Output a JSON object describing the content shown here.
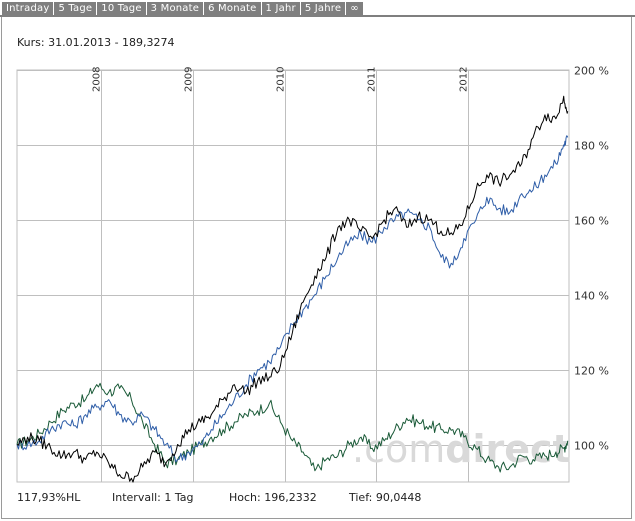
{
  "tabs": [
    {
      "label": "Intraday"
    },
    {
      "label": "5 Tage"
    },
    {
      "label": "10 Tage"
    },
    {
      "label": "3 Monate"
    },
    {
      "label": "6 Monate"
    },
    {
      "label": "1 Jahr"
    },
    {
      "label": "5 Jahre"
    },
    {
      "label": "∞"
    }
  ],
  "price_label": "Kurs: 31.01.2013 - 189,3274",
  "footer": {
    "change": "117,93%HL",
    "interval": "Intervall: 1 Tag",
    "high": "Hoch: 196,2332",
    "low": "Tief: 90,0448"
  },
  "watermark": {
    "prefix": ".com",
    "suffix": "direct",
    "color": "#d9d9d9"
  },
  "colors": {
    "series_main": "#000000",
    "series_blue": "#2f5ea8",
    "series_green": "#1a5a38",
    "grid": "#bfbfbf",
    "tab_bg": "#7f7f7f"
  },
  "chart_data": {
    "type": "line",
    "ylim": [
      90,
      200
    ],
    "yticks": [
      {
        "value": 100,
        "label": "100 %"
      },
      {
        "value": 120,
        "label": "120 %"
      },
      {
        "value": 140,
        "label": "140 %"
      },
      {
        "value": 160,
        "label": "160 %"
      },
      {
        "value": 180,
        "label": "180 %"
      },
      {
        "value": 200,
        "label": "200 %"
      }
    ],
    "xlim": [
      "2007-02-01",
      "2013-02-05"
    ],
    "xticks": [
      {
        "date": "2008-01-01",
        "label": "2008"
      },
      {
        "date": "2009-01-01",
        "label": "2009"
      },
      {
        "date": "2010-01-01",
        "label": "2010"
      },
      {
        "date": "2011-01-01",
        "label": "2011"
      },
      {
        "date": "2012-01-01",
        "label": "2012"
      }
    ],
    "grid": true,
    "series": [
      {
        "key": "main",
        "x": [
          "2007-02-01",
          "2007-03-15",
          "2007-05-01",
          "2007-06-15",
          "2007-08-01",
          "2007-09-15",
          "2007-11-01",
          "2007-12-15",
          "2008-02-01",
          "2008-03-15",
          "2008-05-01",
          "2008-06-15",
          "2008-08-01",
          "2008-09-15",
          "2008-11-01",
          "2008-12-15",
          "2009-02-01",
          "2009-03-15",
          "2009-05-01",
          "2009-06-15",
          "2009-08-01",
          "2009-09-15",
          "2009-11-01",
          "2009-12-15",
          "2010-02-01",
          "2010-03-15",
          "2010-05-01",
          "2010-06-15",
          "2010-08-01",
          "2010-09-15",
          "2010-11-01",
          "2010-12-15",
          "2011-02-01",
          "2011-03-15",
          "2011-05-01",
          "2011-06-15",
          "2011-08-01",
          "2011-09-15",
          "2011-11-01",
          "2011-12-15",
          "2012-02-01",
          "2012-03-15",
          "2012-05-01",
          "2012-06-15",
          "2012-08-01",
          "2012-09-15",
          "2012-11-01",
          "2012-12-15",
          "2013-01-15",
          "2013-01-31"
        ],
        "values": [
          100,
          102,
          101,
          99,
          97,
          98,
          96,
          98,
          95,
          92,
          91,
          94,
          98,
          95,
          100,
          104,
          106,
          108,
          112,
          116,
          114,
          117,
          118,
          121,
          130,
          138,
          145,
          150,
          158,
          160,
          157,
          155,
          160,
          163,
          158,
          161,
          160,
          157,
          156,
          160,
          168,
          172,
          170,
          172,
          175,
          182,
          188,
          187,
          193,
          189
        ]
      },
      {
        "key": "blue",
        "x": [
          "2007-02-01",
          "2007-03-15",
          "2007-05-01",
          "2007-06-15",
          "2007-08-01",
          "2007-09-15",
          "2007-11-01",
          "2007-12-15",
          "2008-02-01",
          "2008-03-15",
          "2008-05-01",
          "2008-06-15",
          "2008-08-01",
          "2008-09-15",
          "2008-11-01",
          "2008-12-15",
          "2009-02-01",
          "2009-03-15",
          "2009-05-01",
          "2009-06-15",
          "2009-08-01",
          "2009-09-15",
          "2009-11-01",
          "2009-12-15",
          "2010-02-01",
          "2010-03-15",
          "2010-05-01",
          "2010-06-15",
          "2010-08-01",
          "2010-09-15",
          "2010-11-01",
          "2010-12-15",
          "2011-02-01",
          "2011-03-15",
          "2011-05-01",
          "2011-06-15",
          "2011-08-01",
          "2011-09-15",
          "2011-11-01",
          "2011-12-15",
          "2012-02-01",
          "2012-03-15",
          "2012-05-01",
          "2012-06-15",
          "2012-08-01",
          "2012-09-15",
          "2012-11-01",
          "2012-12-15",
          "2013-01-15",
          "2013-01-31"
        ],
        "values": [
          100,
          100,
          101,
          104,
          106,
          105,
          108,
          110,
          112,
          108,
          106,
          108,
          104,
          100,
          96,
          98,
          100,
          104,
          108,
          112,
          116,
          120,
          122,
          126,
          132,
          136,
          140,
          145,
          150,
          154,
          156,
          154,
          158,
          160,
          162,
          160,
          158,
          150,
          148,
          155,
          160,
          166,
          163,
          162,
          167,
          168,
          172,
          175,
          180,
          182
        ]
      },
      {
        "key": "green",
        "x": [
          "2007-02-01",
          "2007-03-15",
          "2007-05-01",
          "2007-06-15",
          "2007-08-01",
          "2007-09-15",
          "2007-11-01",
          "2007-12-15",
          "2008-02-01",
          "2008-03-15",
          "2008-05-01",
          "2008-06-15",
          "2008-08-01",
          "2008-09-15",
          "2008-11-01",
          "2008-12-15",
          "2009-02-01",
          "2009-03-15",
          "2009-05-01",
          "2009-06-15",
          "2009-08-01",
          "2009-09-15",
          "2009-11-01",
          "2009-12-15",
          "2010-02-01",
          "2010-03-15",
          "2010-05-01",
          "2010-06-15",
          "2010-08-01",
          "2010-09-15",
          "2010-11-01",
          "2010-12-15",
          "2011-02-01",
          "2011-03-15",
          "2011-05-01",
          "2011-06-15",
          "2011-08-01",
          "2011-09-15",
          "2011-11-01",
          "2011-12-15",
          "2012-02-01",
          "2012-03-15",
          "2012-05-01",
          "2012-06-15",
          "2012-08-01",
          "2012-09-15",
          "2012-11-01",
          "2012-12-15",
          "2013-01-15",
          "2013-01-31"
        ],
        "values": [
          100,
          101,
          103,
          106,
          109,
          111,
          112,
          116,
          114,
          115,
          112,
          106,
          100,
          95,
          96,
          98,
          100,
          102,
          104,
          106,
          108,
          109,
          111,
          106,
          101,
          98,
          93,
          96,
          97,
          100,
          102,
          99,
          101,
          104,
          107,
          106,
          105,
          104,
          104,
          102,
          99,
          96,
          94,
          94,
          97,
          96,
          97,
          98,
          99,
          101
        ]
      }
    ]
  }
}
